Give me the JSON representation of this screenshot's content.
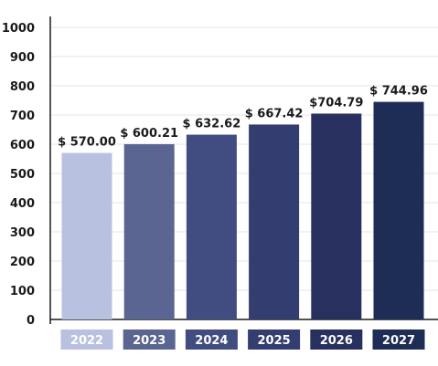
{
  "chart_data": {
    "type": "bar",
    "categories": [
      "2022",
      "2023",
      "2024",
      "2025",
      "2026",
      "2027"
    ],
    "values": [
      570.0,
      600.21,
      632.62,
      667.42,
      704.79,
      744.96
    ],
    "data_labels": [
      "$ 570.00",
      "$ 600.21",
      "$ 632.62",
      "$ 667.42",
      "$704.79",
      "$ 744.96"
    ],
    "y_ticks": [
      "0",
      "100",
      "200",
      "300",
      "400",
      "500",
      "600",
      "700",
      "800",
      "900",
      "1000"
    ],
    "ylim": [
      0,
      1000
    ],
    "grid": "horizontal",
    "colors": [
      "#b9c1e0",
      "#5a6591",
      "#414c80",
      "#343d70",
      "#28305f",
      "#1e2d55"
    ]
  }
}
